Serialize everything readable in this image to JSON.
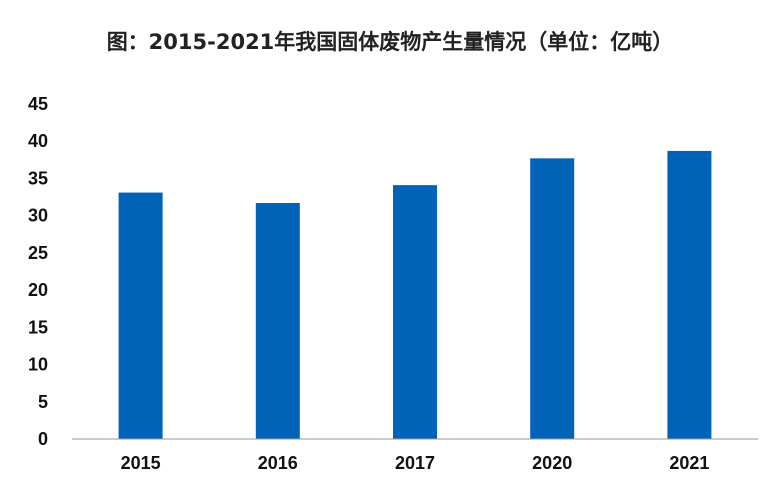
{
  "chart_data": {
    "type": "bar",
    "title": "图：2015-2021年我国固体废物产生量情况（单位：亿吨）",
    "categories": [
      "2015",
      "2016",
      "2017",
      "2020",
      "2021"
    ],
    "values": [
      33.1,
      31.7,
      34.1,
      37.7,
      38.7
    ],
    "ylim": [
      0,
      45
    ],
    "yticks": [
      "0",
      "5",
      "10",
      "15",
      "20",
      "25",
      "30",
      "35",
      "40",
      "45"
    ],
    "grid": false,
    "bar_color": "#0063B7"
  }
}
